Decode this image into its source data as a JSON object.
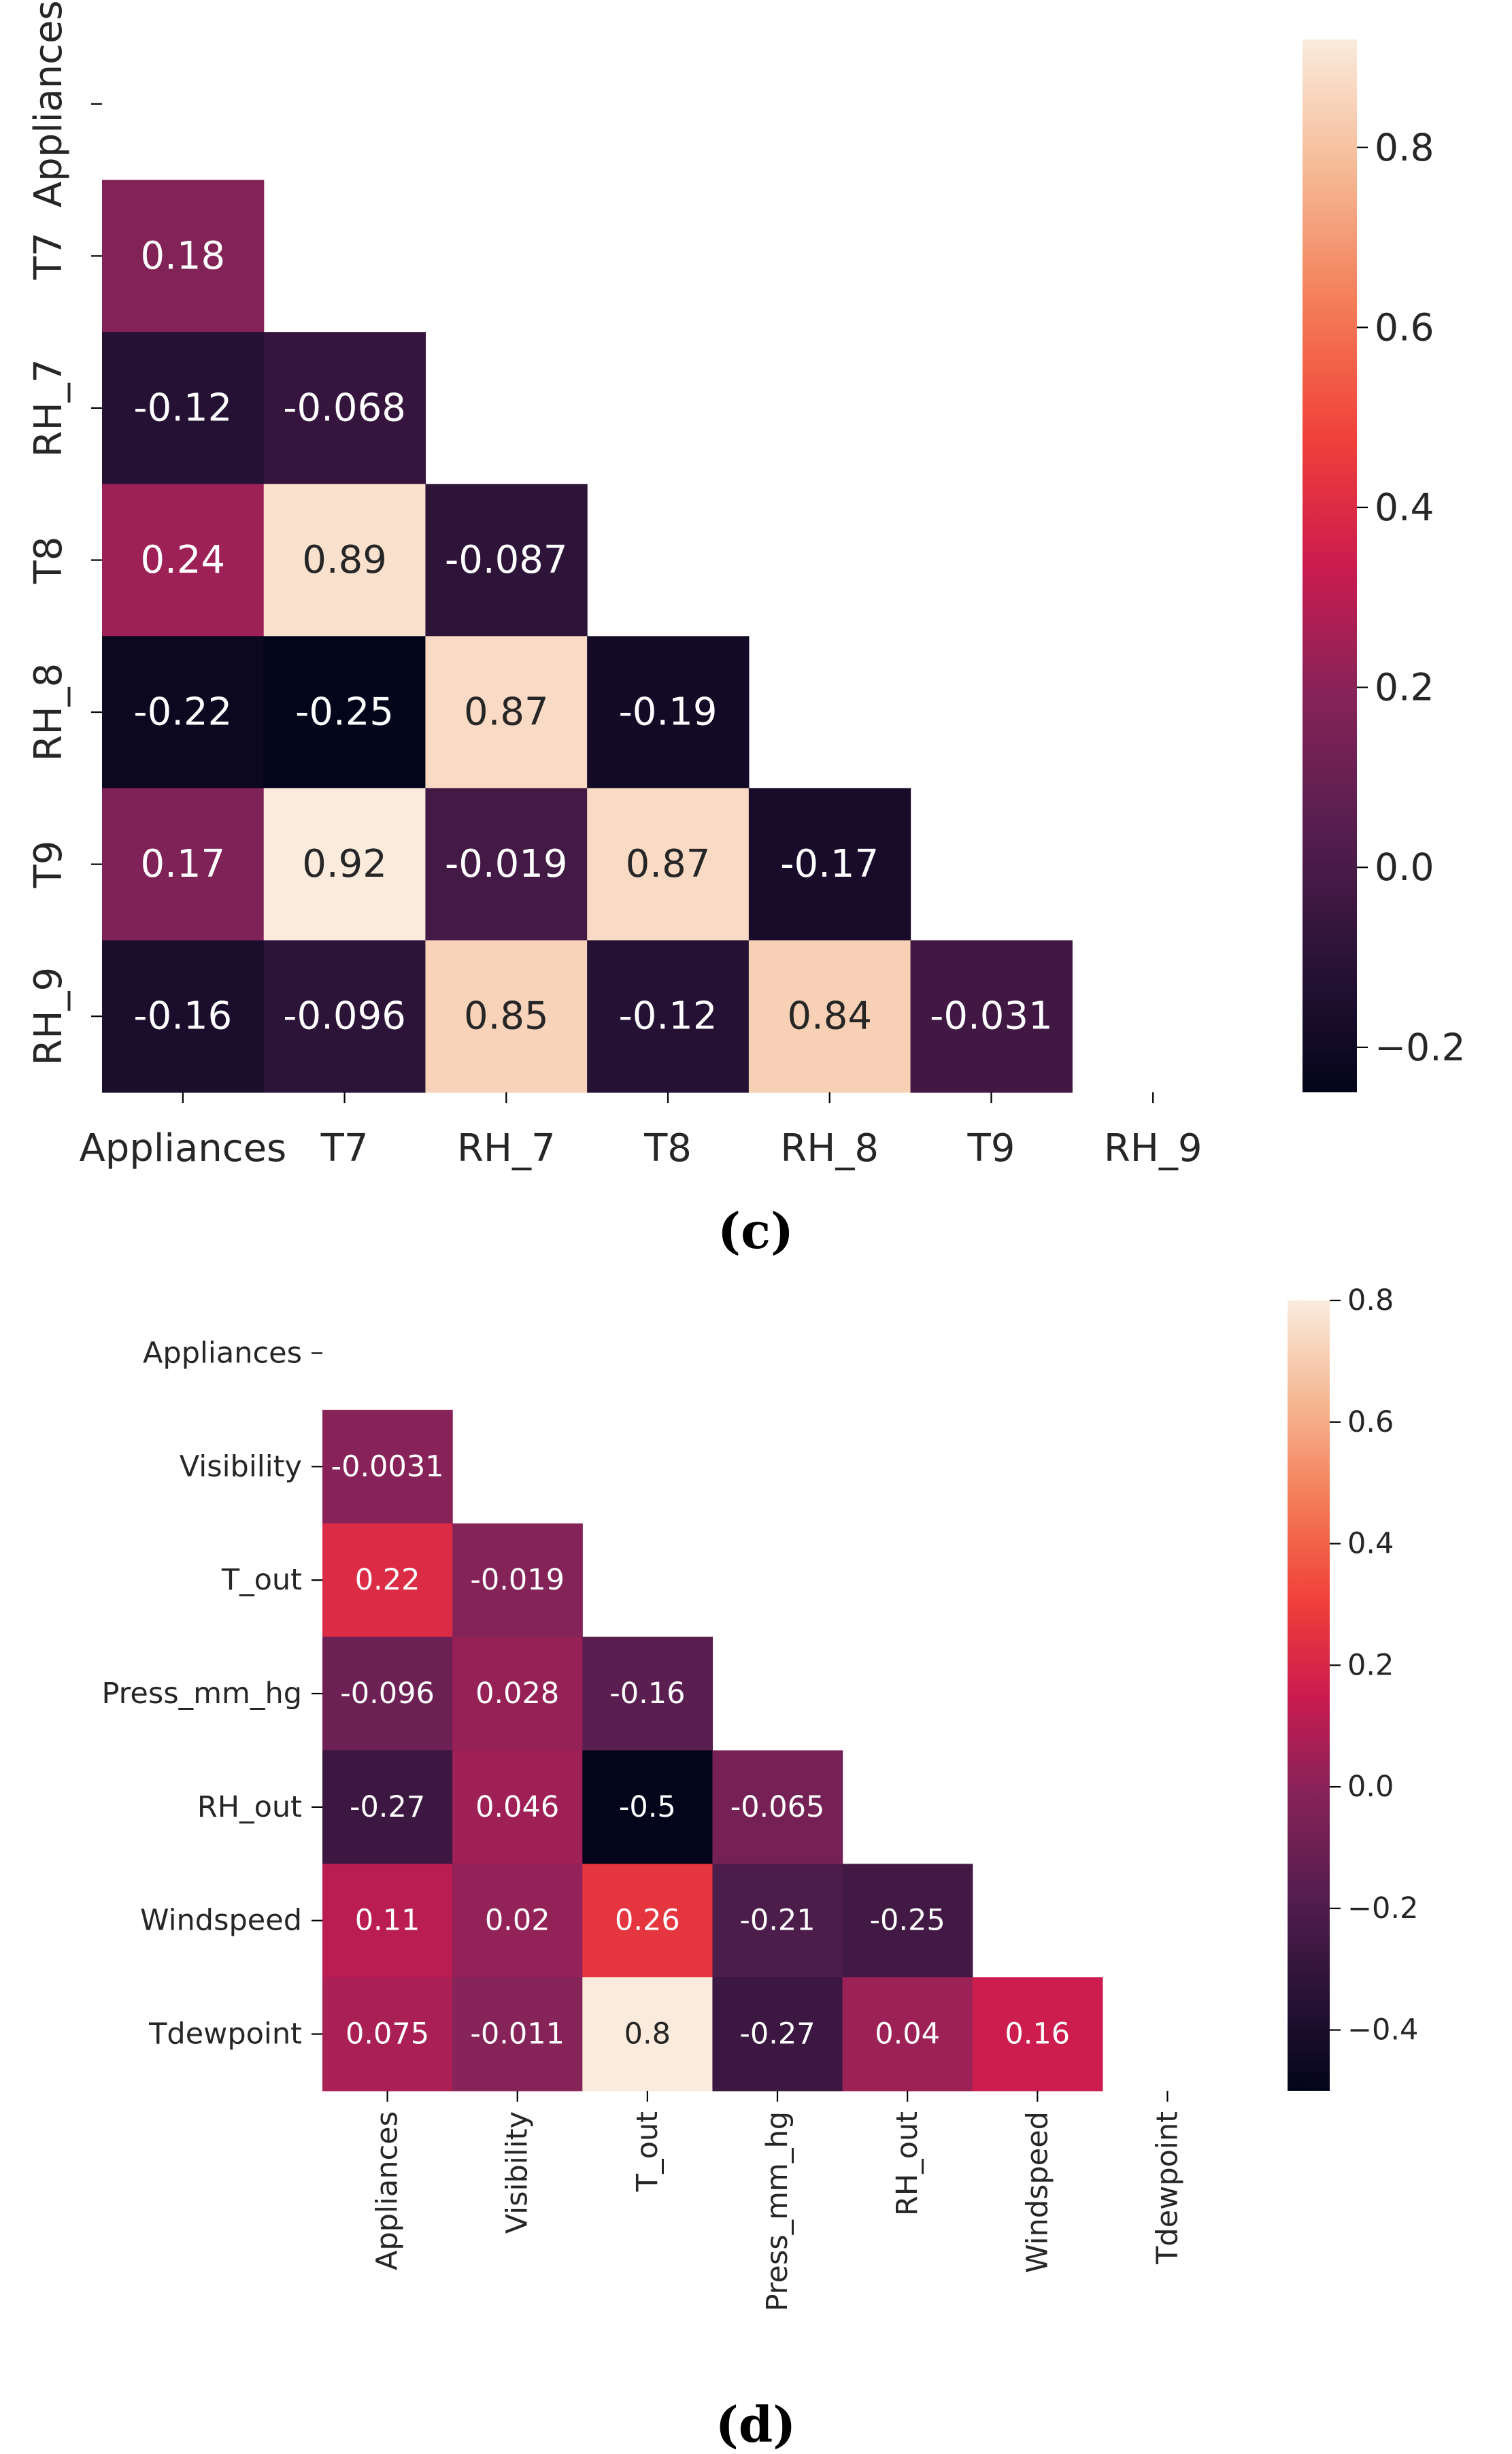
{
  "chart_data": [
    {
      "type": "heatmap",
      "panel_label": "(c)",
      "variables": [
        "Appliances",
        "T7",
        "RH_7",
        "T8",
        "RH_8",
        "T9",
        "RH_9"
      ],
      "mask": "upper-triangle-including-diagonal",
      "matrix_lower": [
        [],
        [
          "0.18"
        ],
        [
          "-0.12",
          "-0.068"
        ],
        [
          "0.24",
          "0.89",
          "-0.087"
        ],
        [
          "-0.22",
          "-0.25",
          "0.87",
          "-0.19"
        ],
        [
          "0.17",
          "0.92",
          "-0.019",
          "0.87",
          "-0.17"
        ],
        [
          "-0.16",
          "-0.096",
          "0.85",
          "-0.12",
          "0.84",
          "-0.031"
        ]
      ],
      "colorbar": {
        "vmin": -0.25,
        "vmax": 0.92,
        "ticks": [
          -0.2,
          0.0,
          0.2,
          0.4,
          0.6,
          0.8
        ],
        "tick_labels": [
          "−0.2",
          "0.0",
          "0.2",
          "0.4",
          "0.6",
          "0.8"
        ],
        "colormap": "rocket"
      },
      "y_tick_rotation": "vertical",
      "x_tick_rotation": "horizontal"
    },
    {
      "type": "heatmap",
      "panel_label": "(d)",
      "variables": [
        "Appliances",
        "Visibility",
        "T_out",
        "Press_mm_hg",
        "RH_out",
        "Windspeed",
        "Tdewpoint"
      ],
      "mask": "upper-triangle-including-diagonal",
      "matrix_lower": [
        [],
        [
          "-0.0031"
        ],
        [
          "0.22",
          "-0.019"
        ],
        [
          "-0.096",
          "0.028",
          "-0.16"
        ],
        [
          "-0.27",
          "0.046",
          "-0.5",
          "-0.065"
        ],
        [
          "0.11",
          "0.02",
          "0.26",
          "-0.21",
          "-0.25"
        ],
        [
          "0.075",
          "-0.011",
          "0.8",
          "-0.27",
          "0.04",
          "0.16"
        ]
      ],
      "colorbar": {
        "vmin": -0.5,
        "vmax": 0.8,
        "ticks": [
          -0.4,
          -0.2,
          0.0,
          0.2,
          0.4,
          0.6,
          0.8
        ],
        "tick_labels": [
          "−0.4",
          "−0.2",
          "0.0",
          "0.2",
          "0.4",
          "0.6",
          "0.8"
        ],
        "colormap": "rocket"
      },
      "y_tick_rotation": "horizontal",
      "x_tick_rotation": "vertical"
    }
  ]
}
